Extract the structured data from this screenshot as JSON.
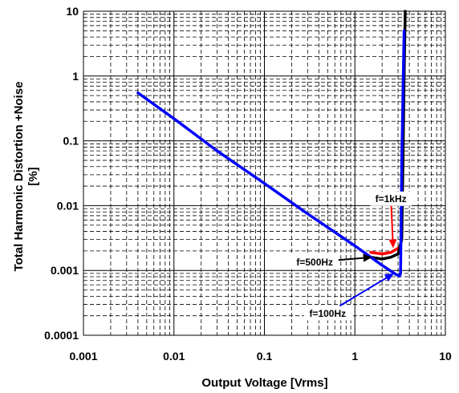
{
  "chart_data": {
    "type": "line",
    "title": "",
    "xlabel": "Output Voltage [Vrms]",
    "ylabel": "Total Harmonic Distortion +Noise [%]",
    "ylabel_line1": "Total Harmonic Distortion +Noise",
    "ylabel_line2": "[%]",
    "xscale": "log",
    "yscale": "log",
    "xlim": [
      0.001,
      10
    ],
    "ylim": [
      0.0001,
      10
    ],
    "grid": true,
    "xticks": [
      {
        "value": 0.001,
        "label": "0.001"
      },
      {
        "value": 0.01,
        "label": "0.01"
      },
      {
        "value": 0.1,
        "label": "0.1"
      },
      {
        "value": 1,
        "label": "1"
      },
      {
        "value": 10,
        "label": "10"
      }
    ],
    "yticks": [
      {
        "value": 10,
        "label": "10"
      },
      {
        "value": 1,
        "label": "1"
      },
      {
        "value": 0.1,
        "label": "0.1"
      },
      {
        "value": 0.01,
        "label": "0.01"
      },
      {
        "value": 0.001,
        "label": "0.001"
      },
      {
        "value": 0.0001,
        "label": "0.0001"
      }
    ],
    "series": [
      {
        "name": "f=1kHz",
        "color": "#ff0000",
        "points": [
          [
            1.5,
            0.0019
          ],
          [
            2.0,
            0.0018
          ],
          [
            2.5,
            0.0019
          ],
          [
            3.0,
            0.0022
          ],
          [
            3.2,
            0.0024
          ]
        ]
      },
      {
        "name": "f=500Hz",
        "color": "#000000",
        "points": [
          [
            1.5,
            0.0016
          ],
          [
            2.0,
            0.0015
          ],
          [
            2.5,
            0.0016
          ],
          [
            3.0,
            0.0018
          ],
          [
            3.3,
            0.003
          ],
          [
            3.4,
            0.05
          ],
          [
            3.5,
            1.0
          ],
          [
            3.6,
            10.0
          ]
        ]
      },
      {
        "name": "f=100Hz",
        "color": "#0000ff",
        "points": [
          [
            0.004,
            0.55
          ],
          [
            0.01,
            0.22
          ],
          [
            0.03,
            0.07
          ],
          [
            0.1,
            0.022
          ],
          [
            0.3,
            0.0075
          ],
          [
            1.0,
            0.0024
          ],
          [
            2.0,
            0.0012
          ],
          [
            2.8,
            0.00088
          ],
          [
            3.1,
            0.00082
          ],
          [
            3.2,
            0.0009
          ],
          [
            3.3,
            0.05
          ],
          [
            3.5,
            5.0
          ]
        ]
      }
    ],
    "annotations": [
      {
        "text": "f=1kHz",
        "series": "f=1kHz",
        "label_at": [
          2.5,
          0.0128
        ],
        "arrow_to": [
          2.65,
          0.0022
        ]
      },
      {
        "text": "f=500Hz",
        "series": "f=500Hz",
        "label_at": [
          0.36,
          0.00135
        ],
        "arrow_to": [
          1.55,
          0.0016
        ]
      },
      {
        "text": "f=100Hz",
        "series": "f=100Hz",
        "label_at": [
          0.5,
          0.00022
        ],
        "arrow_to": [
          2.7,
          0.0009
        ]
      }
    ]
  }
}
